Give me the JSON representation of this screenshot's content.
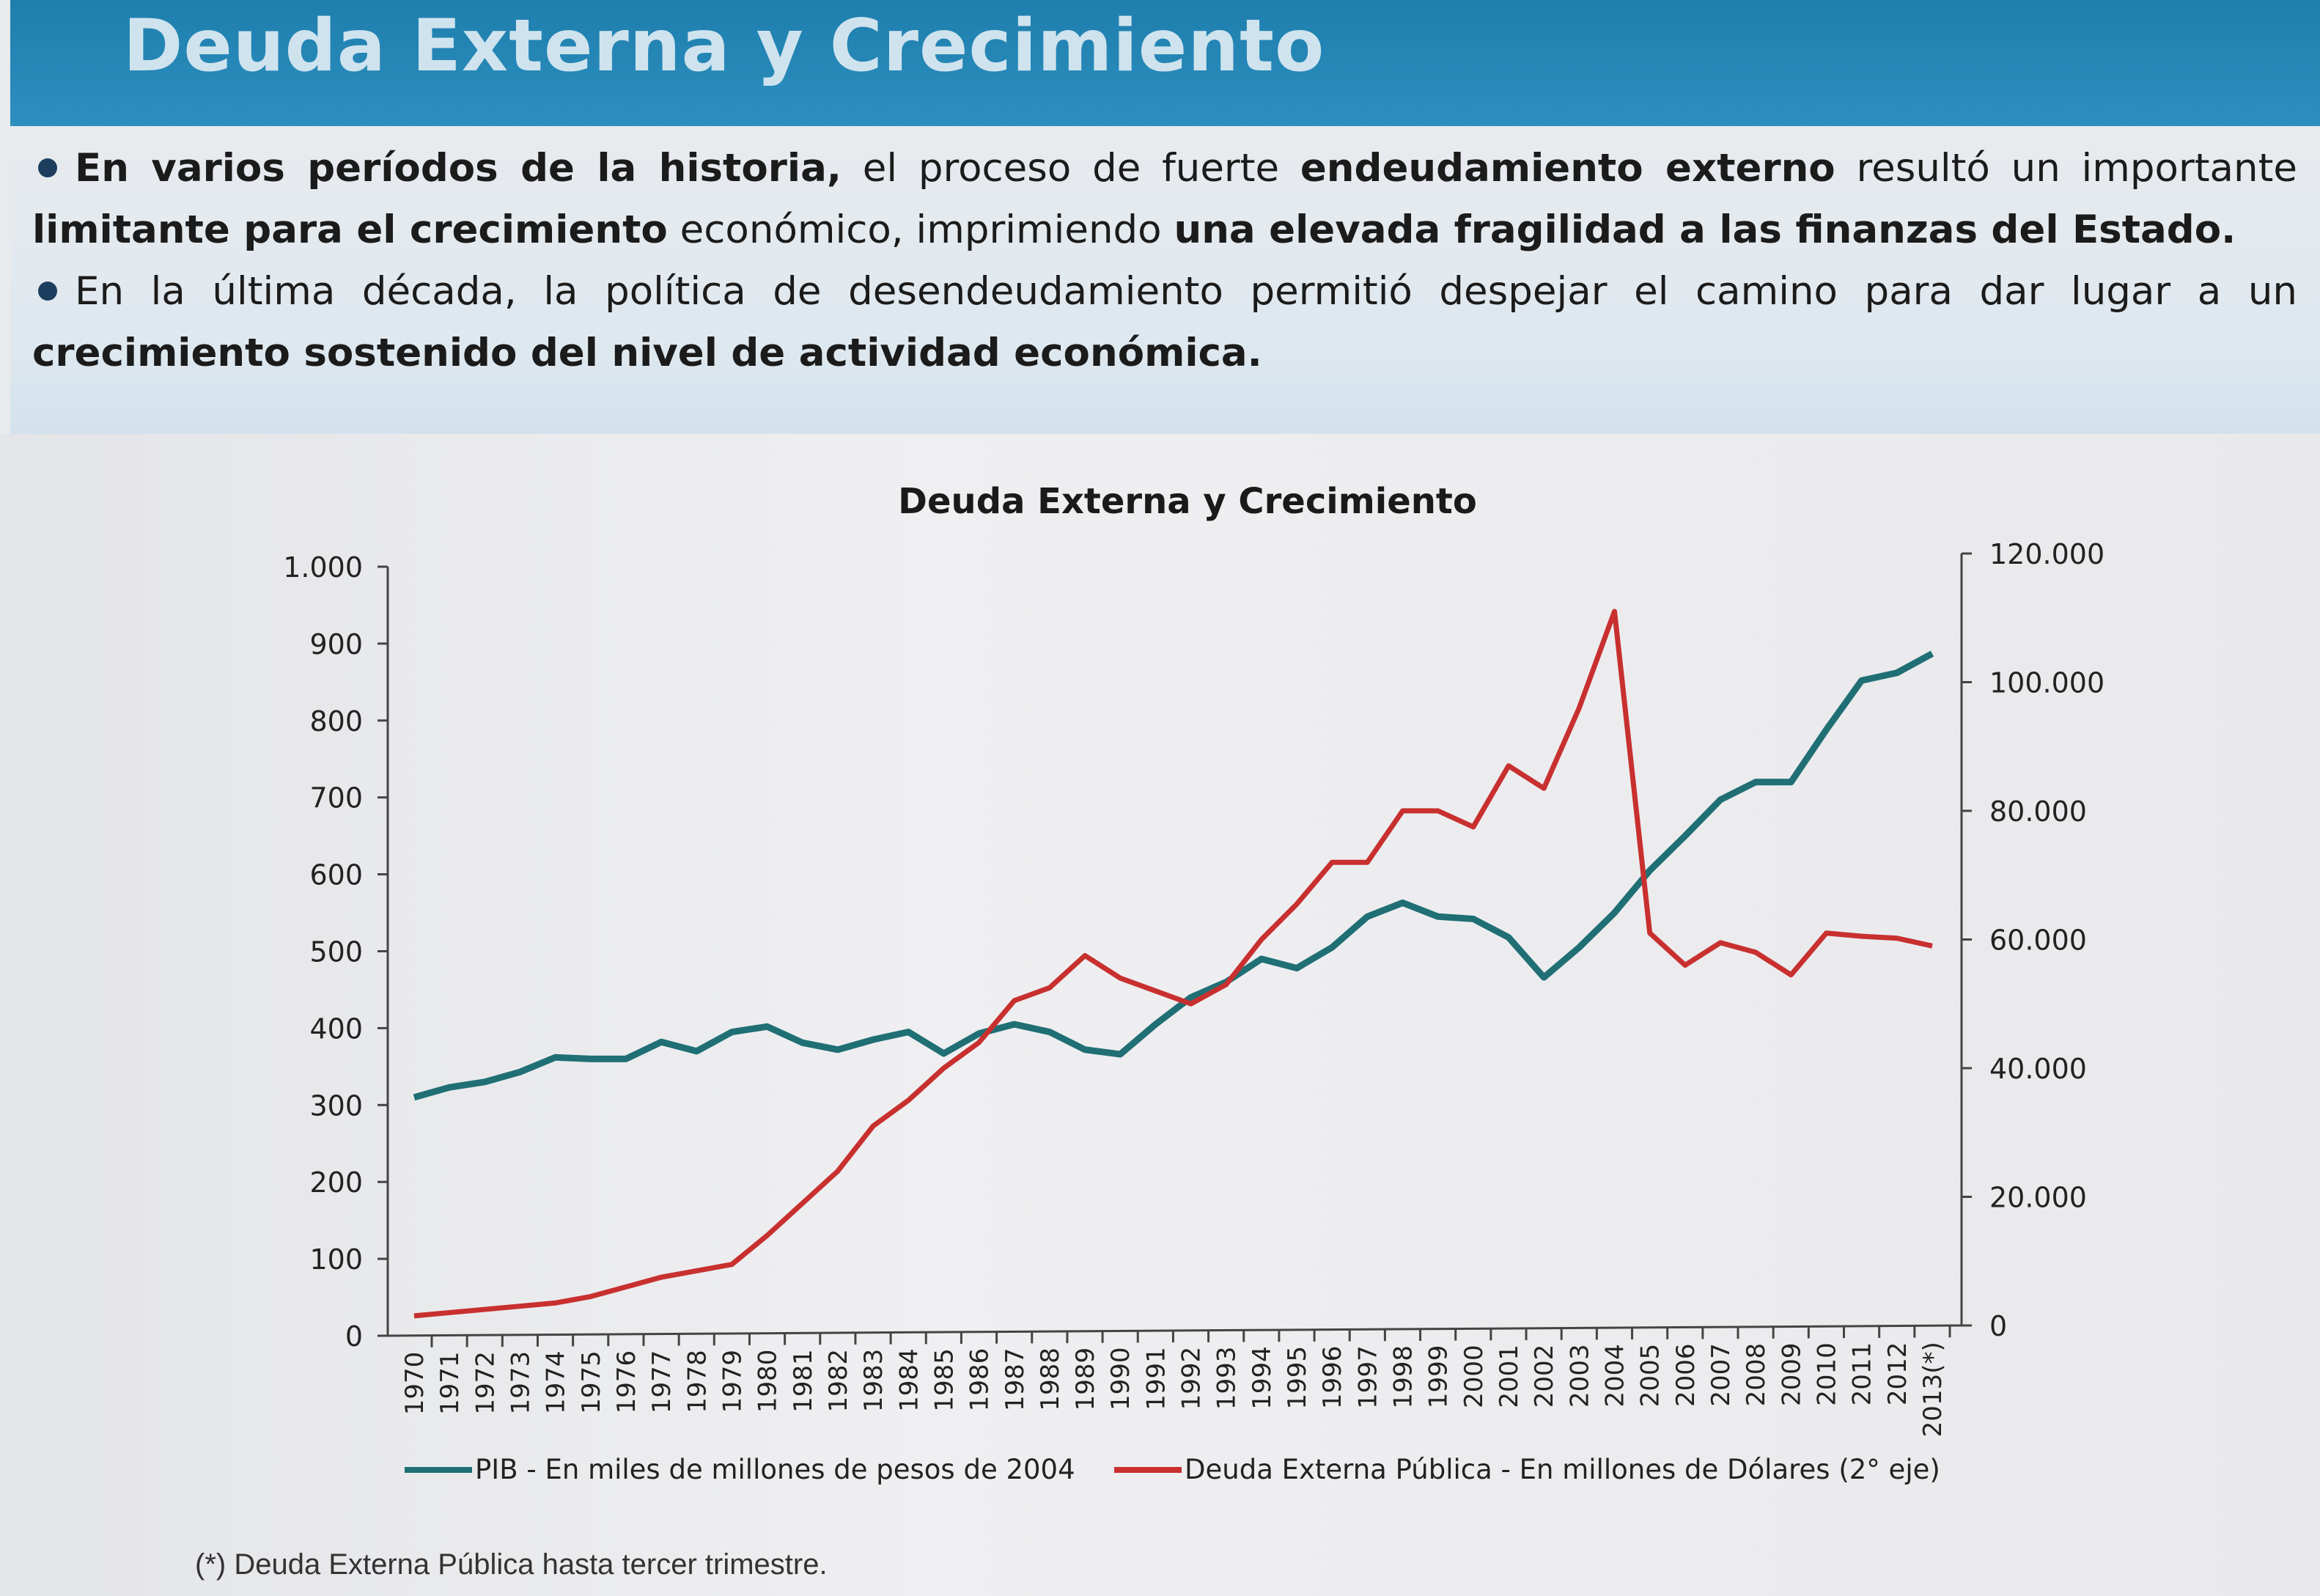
{
  "header": {
    "title": "Deuda Externa y Crecimiento"
  },
  "bullets": [
    {
      "parts": [
        {
          "t": "En varios períodos de la historia,",
          "b": true
        },
        {
          "t": " el proceso de fuerte ",
          "b": false
        },
        {
          "t": "endeudamiento externo",
          "b": true
        },
        {
          "t": " resultó un importante ",
          "b": false
        },
        {
          "t": "limitante para el crecimiento",
          "b": true
        },
        {
          "t": " económico, imprimiendo ",
          "b": false
        },
        {
          "t": "una elevada fragilidad a las finanzas del Estado.",
          "b": true
        }
      ]
    },
    {
      "parts": [
        {
          "t": "En la última década, la política de desendeudamiento permitió despejar el camino para dar lugar a un ",
          "b": false
        },
        {
          "t": "crecimiento sostenido del nivel de actividad económica.",
          "b": true
        }
      ]
    }
  ],
  "footnote": "(*) Deuda Externa Pública hasta tercer trimestre.",
  "colors": {
    "pib": "#1f6f75",
    "deuda": "#c8302f",
    "header": "#1e7fae"
  },
  "chart_data": {
    "type": "line",
    "title": "Deuda Externa y Crecimiento",
    "categories": [
      "1970",
      "1971",
      "1972",
      "1973",
      "1974",
      "1975",
      "1976",
      "1977",
      "1978",
      "1979",
      "1980",
      "1981",
      "1982",
      "1983",
      "1984",
      "1985",
      "1986",
      "1987",
      "1988",
      "1989",
      "1990",
      "1991",
      "1992",
      "1993",
      "1994",
      "1995",
      "1996",
      "1997",
      "1998",
      "1999",
      "2000",
      "2001",
      "2002",
      "2003",
      "2004",
      "2005",
      "2006",
      "2007",
      "2008",
      "2009",
      "2010",
      "2011",
      "2012",
      "2013(*)"
    ],
    "y_left": {
      "ylim": [
        0,
        1000
      ],
      "ticks": [
        0,
        100,
        200,
        300,
        400,
        500,
        600,
        700,
        800,
        900,
        1000
      ],
      "tick_labels": [
        "0",
        "100",
        "200",
        "300",
        "400",
        "500",
        "600",
        "700",
        "800",
        "900",
        "1.000"
      ]
    },
    "y_right": {
      "ylim": [
        0,
        120000
      ],
      "ticks": [
        0,
        20000,
        40000,
        60000,
        80000,
        100000,
        120000
      ],
      "tick_labels": [
        "0",
        "20.000",
        "40.000",
        "60.000",
        "80.000",
        "100.000",
        "120.000"
      ]
    },
    "grid": false,
    "legend": "bottom",
    "series": [
      {
        "name": "PIB - En miles de millones de pesos de 2004",
        "axis": "left",
        "color": "#1f6f75",
        "values": [
          310,
          323,
          330,
          343,
          362,
          360,
          360,
          382,
          370,
          395,
          402,
          381,
          372,
          385,
          395,
          367,
          393,
          405,
          395,
          372,
          366,
          405,
          440,
          460,
          490,
          478,
          505,
          545,
          563,
          545,
          542,
          518,
          466,
          505,
          550,
          605,
          650,
          697,
          720,
          720,
          788,
          852,
          862,
          887
        ]
      },
      {
        "name": "Deuda Externa Pública - En millones de Dólares (2° eje)",
        "axis": "right",
        "color": "#c8302f",
        "values": [
          1500,
          2000,
          2500,
          3000,
          3500,
          4500,
          6000,
          7500,
          8500,
          9500,
          14000,
          19000,
          24000,
          31000,
          35000,
          40000,
          44000,
          50500,
          52500,
          57500,
          54000,
          52000,
          50000,
          53000,
          60000,
          65500,
          72000,
          72000,
          80000,
          80000,
          77500,
          87000,
          83500,
          96000,
          111000,
          61000,
          56000,
          59500,
          58000,
          54500,
          61000,
          60500,
          60200,
          59000
        ]
      }
    ]
  }
}
